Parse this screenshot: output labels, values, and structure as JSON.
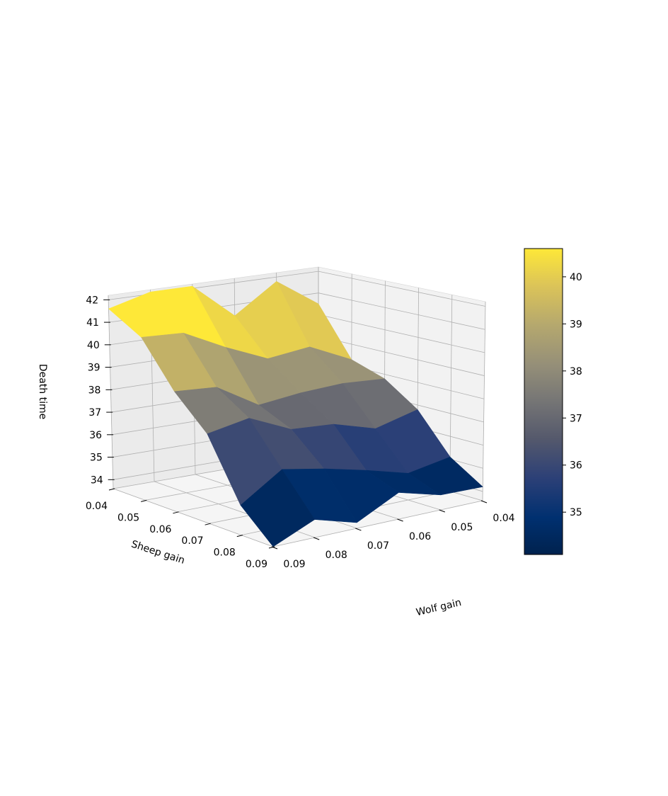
{
  "chart_data": {
    "type": "surface",
    "title": "",
    "colormap": "cividis",
    "xlabel": "Wolf gain",
    "ylabel": "Sheep gain",
    "zlabel": "Death time",
    "wolf_gain_ticks": [
      "0.04",
      "0.05",
      "0.06",
      "0.07",
      "0.08",
      "0.09"
    ],
    "sheep_gain_ticks": [
      "0.04",
      "0.05",
      "0.06",
      "0.07",
      "0.08",
      "0.09"
    ],
    "death_time_ticks": [
      "34",
      "35",
      "36",
      "37",
      "38",
      "39",
      "40",
      "41",
      "42"
    ],
    "zlim": [
      33.6,
      42.2
    ],
    "wolf_gain": [
      0.04,
      0.05,
      0.06,
      0.07,
      0.08,
      0.09
    ],
    "sheep_gain": [
      0.04,
      0.05,
      0.06,
      0.07,
      0.08,
      0.09
    ],
    "death_time": [
      [
        40.5,
        41.8,
        40.5,
        42.1,
        42.1,
        41.6
      ],
      [
        38.3,
        39.1,
        38.8,
        39.5,
        40.3,
        40.3
      ],
      [
        37.8,
        37.8,
        37.6,
        37.3,
        38.2,
        38.2
      ],
      [
        36.8,
        36.2,
        36.6,
        36.6,
        37.2,
        36.8
      ],
      [
        35.1,
        34.7,
        35.1,
        35.4,
        35.6,
        34.6
      ],
      [
        34.2,
        34.2,
        34.6,
        33.8,
        34.2,
        33.6
      ]
    ],
    "grid": true,
    "colorbar": {
      "placement": "right",
      "range": [
        34.1,
        40.6
      ],
      "ticks": [
        "35",
        "36",
        "37",
        "38",
        "39",
        "40"
      ]
    }
  }
}
